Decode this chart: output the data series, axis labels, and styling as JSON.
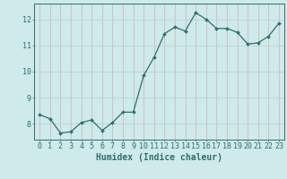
{
  "x": [
    0,
    1,
    2,
    3,
    4,
    5,
    6,
    7,
    8,
    9,
    10,
    11,
    12,
    13,
    14,
    15,
    16,
    17,
    18,
    19,
    20,
    21,
    22,
    23
  ],
  "y": [
    8.35,
    8.2,
    7.65,
    7.7,
    8.05,
    8.15,
    7.75,
    8.05,
    8.45,
    8.45,
    9.85,
    10.55,
    11.45,
    11.7,
    11.55,
    12.25,
    12.0,
    11.65,
    11.65,
    11.5,
    11.05,
    11.1,
    11.35,
    11.85
  ],
  "line_color": "#2d7070",
  "marker": "D",
  "marker_size": 2.0,
  "bg_color": "#ceeaea",
  "grid_color_h": "#b8d4d4",
  "grid_color_v": "#d4b8b8",
  "axis_color": "#2d7070",
  "xlabel": "Humidex (Indice chaleur)",
  "ylabel": "",
  "xlim": [
    -0.5,
    23.5
  ],
  "ylim": [
    7.4,
    12.6
  ],
  "yticks": [
    8,
    9,
    10,
    11,
    12
  ],
  "xticks": [
    0,
    1,
    2,
    3,
    4,
    5,
    6,
    7,
    8,
    9,
    10,
    11,
    12,
    13,
    14,
    15,
    16,
    17,
    18,
    19,
    20,
    21,
    22,
    23
  ],
  "fontsize_axis": 6,
  "fontsize_xlabel": 7
}
